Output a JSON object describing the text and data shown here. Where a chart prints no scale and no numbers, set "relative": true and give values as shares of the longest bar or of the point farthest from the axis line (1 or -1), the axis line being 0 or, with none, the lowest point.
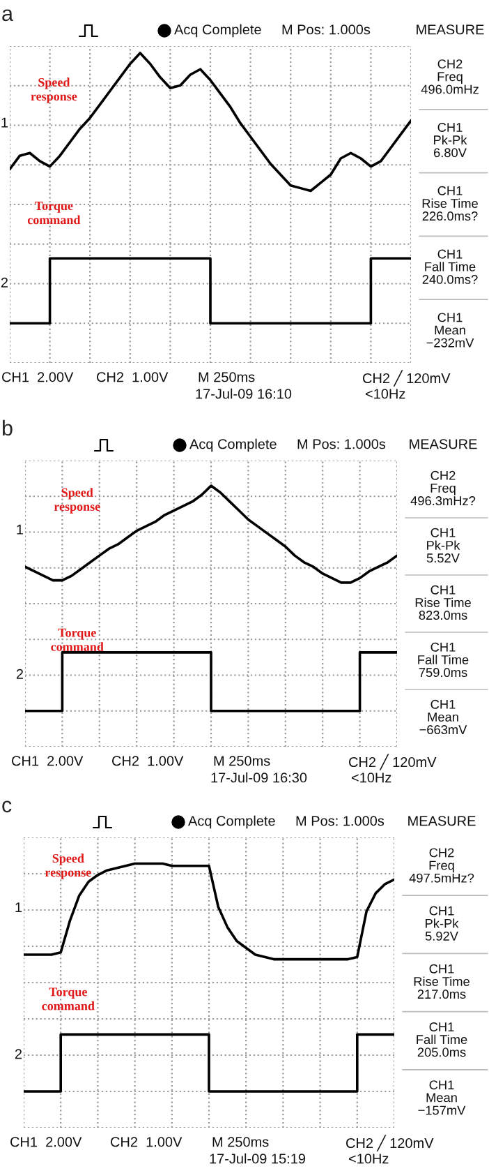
{
  "chart_data": [
    {
      "type": "line",
      "title": "a",
      "relative": true,
      "grid": true,
      "tick_labels": false,
      "line_style": "solid",
      "categories": [
        null,
        null,
        null,
        null,
        null,
        null,
        null,
        null,
        null,
        null,
        null,
        null,
        null,
        null,
        null,
        null,
        null,
        null,
        null,
        null,
        null,
        null,
        null,
        null,
        null,
        null,
        null,
        null,
        null,
        null,
        null,
        null,
        null,
        null,
        null,
        null,
        null,
        null,
        null,
        null,
        null
      ],
      "series": [
        {
          "name": "Speed\nresponse",
          "color": "#000000",
          "values": [
            0.57,
            0.62,
            0.63,
            0.6,
            0.58,
            0.62,
            0.67,
            0.72,
            0.76,
            0.81,
            0.86,
            0.91,
            0.96,
            1.0,
            0.96,
            0.91,
            0.87,
            0.88,
            0.92,
            0.94,
            0.9,
            0.85,
            0.8,
            0.74,
            0.69,
            0.64,
            0.59,
            0.55,
            0.51,
            0.5,
            0.49,
            0.52,
            0.55,
            0.61,
            0.63,
            0.61,
            0.58,
            0.6,
            0.65,
            0.7,
            0.75
          ]
        },
        {
          "name": "Torque\ncommand",
          "type": "step",
          "color": "#000000",
          "values": [
            0,
            0,
            0,
            0,
            0.24,
            0.24,
            0.24,
            0.24,
            0.24,
            0.24,
            0.24,
            0.24,
            0.24,
            0.24,
            0.24,
            0.24,
            0.24,
            0.24,
            0.24,
            0.24,
            0,
            0,
            0,
            0,
            0,
            0,
            0,
            0,
            0,
            0,
            0,
            0,
            0,
            0,
            0,
            0,
            0.24,
            0.24,
            0.24,
            0.24,
            0.24
          ]
        }
      ],
      "annotations": [
        "Acq Complete",
        "M Pos: 1.000s",
        "MEASURE",
        "CH2\nFreq\n496.0mHz",
        "CH1\nPk-Pk\n6.80V",
        "CH1\nRise Time\n226.0ms?",
        "CH1\nFall Time\n240.0ms?",
        "CH1\nMean\n−232mV",
        "CH1  2.00V",
        "CH2  1.00V",
        "M 250ms",
        "CH2 ╱ 120mV",
        "17-Jul-09 16:10",
        "<10Hz",
        "1",
        "2"
      ]
    },
    {
      "type": "line",
      "title": "b",
      "relative": true,
      "grid": true,
      "tick_labels": false,
      "line_style": "solid",
      "categories": [
        null,
        null,
        null,
        null,
        null,
        null,
        null,
        null,
        null,
        null,
        null,
        null,
        null,
        null,
        null,
        null,
        null,
        null,
        null,
        null,
        null,
        null,
        null,
        null,
        null,
        null,
        null,
        null,
        null,
        null,
        null,
        null,
        null,
        null,
        null,
        null,
        null,
        null,
        null,
        null,
        null
      ],
      "series": [
        {
          "name": "Speed\nresponse",
          "color": "#000000",
          "values": [
            0.64,
            0.62,
            0.6,
            0.58,
            0.58,
            0.6,
            0.63,
            0.66,
            0.69,
            0.72,
            0.74,
            0.77,
            0.8,
            0.82,
            0.84,
            0.87,
            0.89,
            0.91,
            0.93,
            0.96,
            1.0,
            0.97,
            0.93,
            0.89,
            0.85,
            0.82,
            0.79,
            0.76,
            0.73,
            0.69,
            0.66,
            0.64,
            0.61,
            0.59,
            0.57,
            0.57,
            0.59,
            0.62,
            0.64,
            0.66,
            0.69
          ]
        },
        {
          "name": "Torque\ncommand",
          "type": "step",
          "color": "#000000",
          "values": [
            0,
            0,
            0,
            0,
            0.26,
            0.26,
            0.26,
            0.26,
            0.26,
            0.26,
            0.26,
            0.26,
            0.26,
            0.26,
            0.26,
            0.26,
            0.26,
            0.26,
            0.26,
            0.26,
            0,
            0,
            0,
            0,
            0,
            0,
            0,
            0,
            0,
            0,
            0,
            0,
            0,
            0,
            0,
            0,
            0.26,
            0.26,
            0.26,
            0.26,
            0.26
          ]
        }
      ],
      "annotations": [
        "Acq Complete",
        "M Pos: 1.000s",
        "MEASURE",
        "CH2\nFreq\n496.3mHz?",
        "CH1\nPk-Pk\n5.52V",
        "CH1\nRise Time\n823.0ms",
        "CH1\nFall Time\n759.0ms",
        "CH1\nMean\n−663mV",
        "CH1  2.00V",
        "CH2  1.00V",
        "M 250ms",
        "CH2 ╱ 120mV",
        "17-Jul-09 16:30",
        "<10Hz",
        "1",
        "2"
      ]
    },
    {
      "type": "line",
      "title": "c",
      "relative": true,
      "grid": true,
      "tick_labels": false,
      "line_style": "solid",
      "categories": [
        null,
        null,
        null,
        null,
        null,
        null,
        null,
        null,
        null,
        null,
        null,
        null,
        null,
        null,
        null,
        null,
        null,
        null,
        null,
        null,
        null,
        null,
        null,
        null,
        null,
        null,
        null,
        null,
        null,
        null,
        null,
        null,
        null,
        null,
        null,
        null,
        null,
        null,
        null,
        null,
        null
      ],
      "series": [
        {
          "name": "Speed\nresponse",
          "color": "#000000",
          "values": [
            0.6,
            0.6,
            0.6,
            0.6,
            0.61,
            0.75,
            0.86,
            0.92,
            0.95,
            0.97,
            0.98,
            0.99,
            1.0,
            1.0,
            1.0,
            1.0,
            0.99,
            0.99,
            0.99,
            0.99,
            0.99,
            0.81,
            0.72,
            0.66,
            0.63,
            0.6,
            0.59,
            0.58,
            0.58,
            0.58,
            0.58,
            0.58,
            0.58,
            0.58,
            0.58,
            0.58,
            0.59,
            0.79,
            0.87,
            0.91,
            0.93
          ]
        },
        {
          "name": "Torque\ncommand",
          "type": "step",
          "color": "#000000",
          "values": [
            0,
            0,
            0,
            0,
            0.25,
            0.25,
            0.25,
            0.25,
            0.25,
            0.25,
            0.25,
            0.25,
            0.25,
            0.25,
            0.25,
            0.25,
            0.25,
            0.25,
            0.25,
            0.25,
            0,
            0,
            0,
            0,
            0,
            0,
            0,
            0,
            0,
            0,
            0,
            0,
            0,
            0,
            0,
            0,
            0.25,
            0.25,
            0.25,
            0.25,
            0.25
          ]
        }
      ],
      "annotations": [
        "Acq Complete",
        "M Pos: 1.000s",
        "MEASURE",
        "CH2\nFreq\n497.5mHz?",
        "CH1\nPk-Pk\n5.92V",
        "CH1\nRise Time\n217.0ms",
        "CH1\nFall Time\n205.0ms",
        "CH1\nMean\n−157mV",
        "CH1  2.00V",
        "CH2  1.00V",
        "M 250ms",
        "CH2 ╱ 120mV",
        "17-Jul-09 15:19",
        "<10Hz",
        "1",
        "2"
      ]
    }
  ]
}
